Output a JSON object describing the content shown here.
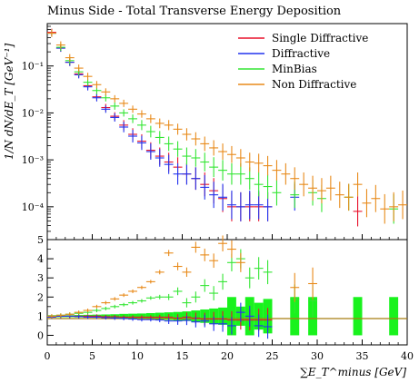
{
  "chart_data": {
    "type": "scatter",
    "title": "Minus Side - Total Transverse Energy Deposition",
    "xlabel": "∑E_T^minus [GeV]",
    "ylabel": "1/N dN/dE_T [GeV⁻¹]",
    "xlim": [
      0,
      40
    ],
    "top_panel": {
      "yscale": "log",
      "ylim": [
        2e-05,
        0.8
      ],
      "y_tick_labels": [
        "10⁻¹",
        "10⁻²",
        "10⁻³",
        "10⁻⁴"
      ],
      "y_ticks": [
        0.1,
        0.01,
        0.001,
        0.0001
      ]
    },
    "ratio_panel": {
      "ylim": [
        -0.5,
        5
      ],
      "y_ticks": [
        0,
        1,
        2,
        3,
        4,
        5
      ]
    },
    "x_ticks": [
      0,
      5,
      10,
      15,
      20,
      25,
      30,
      35,
      40
    ],
    "legend_position": "top-right",
    "series": [
      {
        "name": "Single Diffractive",
        "color": "#e8102a",
        "x": [
          0.5,
          1.5,
          2.5,
          3.5,
          4.5,
          5.5,
          6.5,
          7.5,
          8.5,
          9.5,
          10.5,
          11.5,
          12.5,
          13.5,
          14.5,
          15.5,
          16.5,
          17.5,
          18.5,
          19.5,
          20.5,
          21.5,
          22.5,
          23.5,
          24.5,
          34.5
        ],
        "y": [
          0.52,
          0.24,
          0.12,
          0.068,
          0.038,
          0.022,
          0.013,
          0.0085,
          0.0055,
          0.0035,
          0.0025,
          0.0016,
          0.0012,
          0.0009,
          0.0007,
          0.0005,
          0.0004,
          0.0003,
          0.00022,
          0.00015,
          0.0001,
          0.0001,
          0.0001,
          0.0001,
          0.0001,
          8e-05
        ]
      },
      {
        "name": "Diffractive",
        "color": "#2233ee",
        "x": [
          0.5,
          1.5,
          2.5,
          3.5,
          4.5,
          5.5,
          6.5,
          7.5,
          8.5,
          9.5,
          10.5,
          11.5,
          12.5,
          13.5,
          14.5,
          15.5,
          16.5,
          17.5,
          18.5,
          19.5,
          20.5,
          21.5,
          22.5,
          23.5,
          24.5,
          27.5
        ],
        "y": [
          0.5,
          0.24,
          0.12,
          0.065,
          0.036,
          0.021,
          0.012,
          0.008,
          0.005,
          0.0032,
          0.0023,
          0.0015,
          0.0011,
          0.0008,
          0.0005,
          0.0005,
          0.0004,
          0.00026,
          0.00018,
          0.00016,
          0.00011,
          0.0001,
          0.00011,
          0.00011,
          0.0001,
          0.00016
        ]
      },
      {
        "name": "MinBias",
        "color": "#33e633",
        "x": [
          0.5,
          1.5,
          2.5,
          3.5,
          4.5,
          5.5,
          6.5,
          7.5,
          8.5,
          9.5,
          10.5,
          11.5,
          12.5,
          13.5,
          14.5,
          15.5,
          16.5,
          17.5,
          18.5,
          19.5,
          20.5,
          21.5,
          22.5,
          23.5,
          24.5,
          25.5,
          27.5,
          29.5,
          30.5,
          33.5,
          38.5
        ],
        "y": [
          0.5,
          0.25,
          0.13,
          0.075,
          0.045,
          0.03,
          0.021,
          0.014,
          0.01,
          0.0075,
          0.0055,
          0.004,
          0.003,
          0.0022,
          0.0017,
          0.0012,
          0.0011,
          0.0009,
          0.0007,
          0.0006,
          0.0005,
          0.0005,
          0.0004,
          0.0003,
          0.00027,
          0.0002,
          0.00018,
          0.0002,
          0.00015,
          0.00016,
          9e-05
        ]
      },
      {
        "name": "Non Diffractive",
        "color": "#e88a1a",
        "x": [
          0.5,
          1.5,
          2.5,
          3.5,
          4.5,
          5.5,
          6.5,
          7.5,
          8.5,
          9.5,
          10.5,
          11.5,
          12.5,
          13.5,
          14.5,
          15.5,
          16.5,
          17.5,
          18.5,
          19.5,
          20.5,
          21.5,
          22.5,
          23.5,
          24.5,
          25.5,
          26.5,
          27.5,
          28.5,
          29.5,
          30.5,
          31.5,
          32.5,
          33.5,
          34.5,
          35.5,
          36.5,
          37.5,
          38.5,
          39.5
        ],
        "y": [
          0.5,
          0.28,
          0.15,
          0.09,
          0.06,
          0.04,
          0.028,
          0.02,
          0.016,
          0.012,
          0.0095,
          0.0075,
          0.006,
          0.0055,
          0.0045,
          0.0035,
          0.0028,
          0.0022,
          0.0018,
          0.0015,
          0.0013,
          0.0011,
          0.0009,
          0.00085,
          0.00075,
          0.0006,
          0.0005,
          0.0004,
          0.0003,
          0.00025,
          0.00022,
          0.00025,
          0.00018,
          0.00016,
          0.0003,
          0.00012,
          0.00015,
          9e-05,
          0.0001,
          0.00011
        ]
      }
    ],
    "ratio_series": [
      {
        "name": "Single Diffractive",
        "x": [
          0.5,
          1.5,
          2.5,
          3.5,
          4.5,
          5.5,
          6.5,
          7.5,
          8.5,
          9.5,
          10.5,
          11.5,
          12.5,
          13.5,
          14.5,
          15.5,
          16.5,
          17.5,
          18.5,
          19.5,
          20.5,
          21.5,
          22.5,
          23.5,
          24.5
        ],
        "y": [
          1.0,
          1.0,
          1.0,
          1.0,
          1.0,
          1.0,
          0.97,
          0.97,
          0.95,
          0.95,
          0.95,
          0.95,
          0.95,
          0.95,
          0.9,
          0.95,
          0.9,
          0.85,
          0.85,
          0.85,
          0.8,
          0.8,
          0.8,
          0.8,
          0.8
        ]
      },
      {
        "name": "Diffractive",
        "x": [
          0.5,
          1.5,
          2.5,
          3.5,
          4.5,
          5.5,
          6.5,
          7.5,
          8.5,
          9.5,
          10.5,
          11.5,
          12.5,
          13.5,
          14.5,
          15.5,
          16.5,
          17.5,
          18.5,
          19.5,
          20.5,
          21.5,
          22.5,
          23.5,
          24.5
        ],
        "y": [
          0.95,
          1.0,
          1.0,
          0.98,
          0.95,
          0.95,
          0.92,
          0.9,
          0.88,
          0.85,
          0.82,
          0.82,
          0.8,
          0.75,
          0.75,
          0.78,
          0.7,
          0.75,
          0.6,
          0.6,
          0.5,
          1.2,
          1.0,
          0.5,
          0.45
        ]
      },
      {
        "name": "MinBias",
        "x": [
          0.5,
          1.5,
          2.5,
          3.5,
          4.5,
          5.5,
          6.5,
          7.5,
          8.5,
          9.5,
          10.5,
          11.5,
          12.5,
          13.5,
          14.5,
          15.5,
          16.5,
          17.5,
          18.5,
          19.5,
          20.5,
          21.5,
          22.5,
          23.5,
          24.5,
          27.5,
          29.5
        ],
        "y": [
          1.0,
          1.05,
          1.1,
          1.15,
          1.2,
          1.3,
          1.4,
          1.5,
          1.6,
          1.7,
          1.8,
          1.95,
          2.0,
          2.0,
          2.3,
          1.7,
          2.0,
          2.6,
          2.2,
          2.8,
          3.8,
          4.0,
          3.0,
          3.5,
          3.3,
          1.9,
          1.8
        ]
      },
      {
        "name": "Non Diffractive",
        "x": [
          0.5,
          1.5,
          2.5,
          3.5,
          4.5,
          5.5,
          6.5,
          7.5,
          8.5,
          9.5,
          10.5,
          11.5,
          12.5,
          13.5,
          14.5,
          15.5,
          16.5,
          17.5,
          18.5,
          19.5,
          20.5,
          21.5,
          27.5,
          29.5
        ],
        "y": [
          1.0,
          1.05,
          1.1,
          1.2,
          1.3,
          1.5,
          1.7,
          1.9,
          2.1,
          2.3,
          2.5,
          2.8,
          3.3,
          4.3,
          3.6,
          3.3,
          4.6,
          4.2,
          3.9,
          4.8,
          4.5,
          3.8,
          2.5,
          2.7
        ]
      }
    ]
  }
}
